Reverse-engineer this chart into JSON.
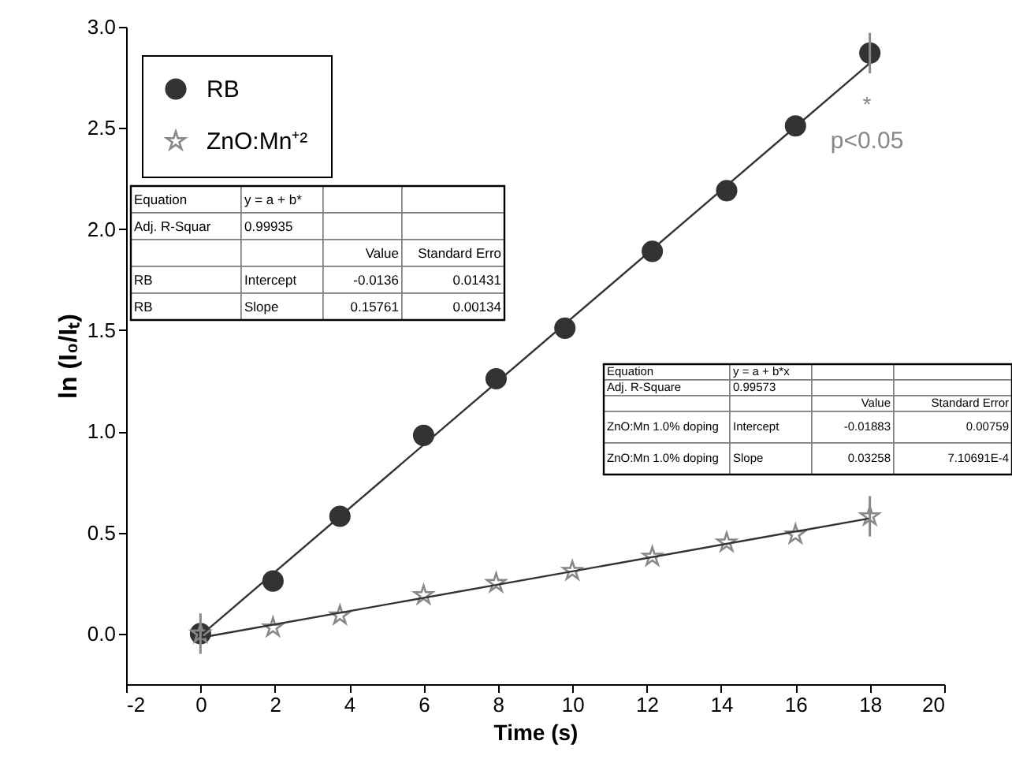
{
  "chart_data": {
    "type": "scatter",
    "xlabel": "Time (s)",
    "ylabel": "ln (I₀/Iₜ)",
    "xlim": [
      -2,
      20
    ],
    "xticks": [
      -2,
      0,
      2,
      4,
      6,
      8,
      10,
      12,
      14,
      16,
      18,
      20
    ],
    "ylim": [
      -0.25,
      3.0
    ],
    "yticks": [
      {
        "value": 0,
        "label": "0.0"
      },
      0.5,
      {
        "value": 1,
        "label": "1.0"
      },
      1.5,
      {
        "value": 2,
        "label": "2.0"
      },
      2.5,
      {
        "value": 3,
        "label": "3.0"
      }
    ],
    "grid": false,
    "legend": "top left",
    "series": [
      {
        "name": "RB",
        "marker": "circle",
        "color": "#333333",
        "x": [
          0,
          1.95,
          3.75,
          6,
          7.95,
          9.8,
          12.15,
          14.15,
          16,
          18
        ],
        "values": [
          0.0,
          0.26,
          0.58,
          0.98,
          1.26,
          1.51,
          1.89,
          2.19,
          2.51,
          2.87
        ],
        "errors": [
          0.1,
          null,
          null,
          null,
          null,
          null,
          null,
          null,
          null,
          0.1
        ]
      },
      {
        "name": "ZnO:Mn⁺²",
        "marker": "star",
        "color": "#888888",
        "x": [
          0,
          1.95,
          3.75,
          6,
          7.95,
          10.0,
          12.15,
          14.15,
          16,
          18
        ],
        "values": [
          0.0,
          0.03,
          0.09,
          0.19,
          0.25,
          0.31,
          0.38,
          0.45,
          0.49,
          0.58
        ],
        "errors": [
          null,
          null,
          null,
          null,
          null,
          null,
          null,
          null,
          null,
          0.1
        ]
      },
      {
        "type": "line",
        "color": "#333333",
        "x": [
          0,
          18
        ],
        "values": [
          -0.01,
          2.82
        ]
      },
      {
        "type": "line",
        "color": "#333333",
        "x": [
          0,
          18
        ],
        "values": [
          -0.02,
          0.57
        ]
      }
    ],
    "annotations": [
      "*",
      "p<0.05",
      "Equation",
      "y = a + b*",
      "Adj. R-Squar",
      "0.99935",
      "Value",
      "Standard Erro",
      "RB",
      "Intercept",
      "-0.0136",
      "0.01431",
      "RB",
      "Slope",
      "0.15761",
      "0.00134",
      "Equation",
      "y = a + b*x",
      "Adj. R-Square",
      "0.99573",
      "Value",
      "Standard Error",
      "ZnO:Mn 1.0% doping",
      "Intercept",
      "-0.01883",
      "0.00759",
      "ZnO:Mn 1.0% doping",
      "Slope",
      "0.03258",
      "7.10691E-4"
    ]
  }
}
